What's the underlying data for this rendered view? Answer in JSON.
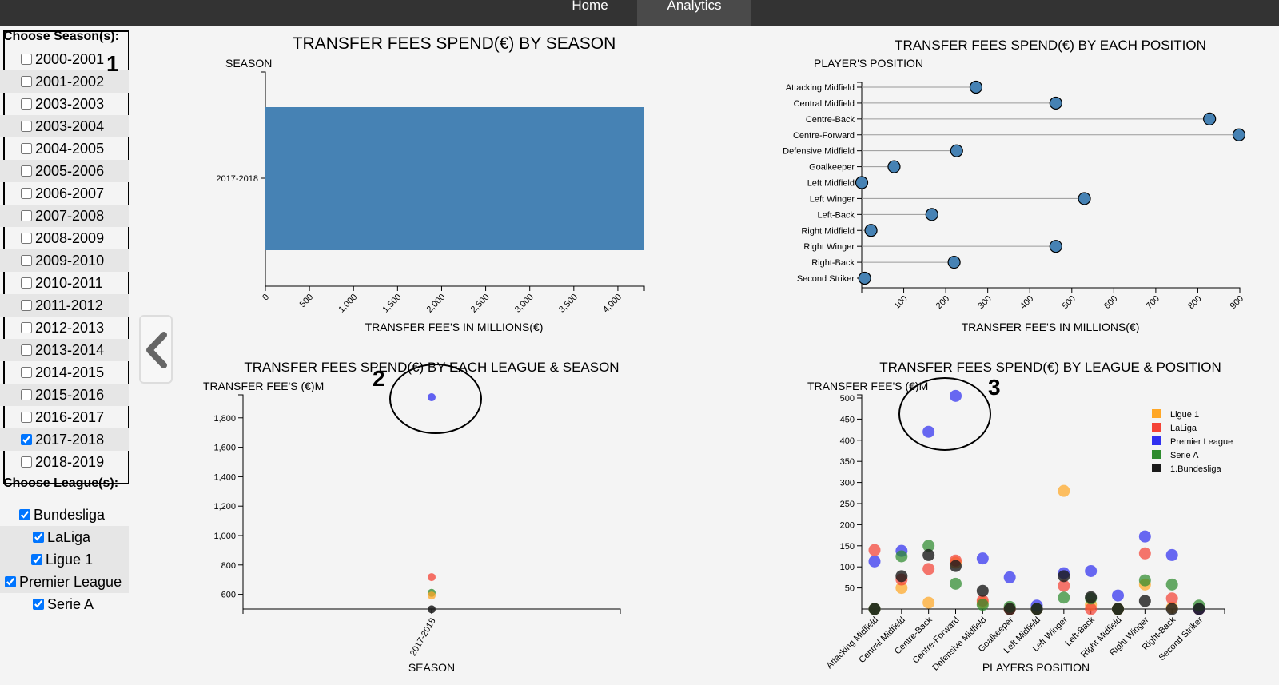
{
  "nav": {
    "home_label": "Home",
    "analytics_label": "Analytics"
  },
  "filters": {
    "season_title": "Choose Season(s):",
    "seasons": [
      {
        "label": "2000-2001",
        "checked": false
      },
      {
        "label": "2001-2002",
        "checked": false
      },
      {
        "label": "2003-2003",
        "checked": false
      },
      {
        "label": "2003-2004",
        "checked": false
      },
      {
        "label": "2004-2005",
        "checked": false
      },
      {
        "label": "2005-2006",
        "checked": false
      },
      {
        "label": "2006-2007",
        "checked": false
      },
      {
        "label": "2007-2008",
        "checked": false
      },
      {
        "label": "2008-2009",
        "checked": false
      },
      {
        "label": "2009-2010",
        "checked": false
      },
      {
        "label": "2010-2011",
        "checked": false
      },
      {
        "label": "2011-2012",
        "checked": false
      },
      {
        "label": "2012-2013",
        "checked": false
      },
      {
        "label": "2013-2014",
        "checked": false
      },
      {
        "label": "2014-2015",
        "checked": false
      },
      {
        "label": "2015-2016",
        "checked": false
      },
      {
        "label": "2016-2017",
        "checked": false
      },
      {
        "label": "2017-2018",
        "checked": true
      },
      {
        "label": "2018-2019",
        "checked": false
      }
    ],
    "league_title": "Choose League(s):",
    "leagues": [
      {
        "label": "Bundesliga",
        "checked": true
      },
      {
        "label": "LaLiga",
        "checked": true
      },
      {
        "label": "Ligue 1",
        "checked": true
      },
      {
        "label": "Premier League",
        "checked": true
      },
      {
        "label": "Serie A",
        "checked": true
      }
    ]
  },
  "collapse_icon": "chevron-left-icon",
  "annotations": [
    "1",
    "2",
    "3"
  ],
  "colors": {
    "bar": "#4682b4",
    "Ligue 1": "#ffa726",
    "LaLiga": "#f44336",
    "Premier League": "#3030f0",
    "Serie A": "#2e8b2e",
    "1.Bundesliga": "#1a1a1a"
  },
  "chart_data": [
    {
      "type": "bar",
      "orientation": "horizontal",
      "title": "TRANSFER FEES SPEND(€) BY SEASON",
      "ylabel": "SEASON",
      "xlabel": "TRANSFER FEE'S IN MILLIONS(€)",
      "categories": [
        "2017-2018"
      ],
      "values": [
        4300
      ],
      "xlim": [
        0,
        4300
      ],
      "xticks": [
        "0",
        "500",
        "1,000",
        "1,500",
        "2,000",
        "2,500",
        "3,000",
        "3,500",
        "4,000"
      ]
    },
    {
      "type": "lollipop",
      "title": "TRANSFER FEES SPEND(€) BY EACH POSITION",
      "ylabel": "PLAYER'S POSITION",
      "xlabel": "TRANSFER FEE'S IN MILLIONS(€)",
      "categories": [
        "Attacking Midfield",
        "Central Midfield",
        "Centre-Back",
        "Centre-Forward",
        "Defensive Midfield",
        "Goalkeeper",
        "Left Midfield",
        "Left Winger",
        "Left-Back",
        "Right Midfield",
        "Right Winger",
        "Right-Back",
        "Second Striker"
      ],
      "values": [
        272,
        462,
        828,
        898,
        226,
        77,
        0,
        530,
        167,
        22,
        462,
        220,
        7
      ],
      "xlim": [
        0,
        900
      ],
      "xticks": [
        "100",
        "200",
        "300",
        "400",
        "500",
        "600",
        "700",
        "800",
        "900"
      ]
    },
    {
      "type": "scatter",
      "title": "TRANSFER FEES SPEND(€) BY EACH LEAGUE & SEASON",
      "ylabel": "TRANSFER FEE'S (€)M",
      "xlabel": "SEASON",
      "categories": [
        "2017-2018"
      ],
      "ylim": [
        500,
        1950
      ],
      "yticks": [
        "600",
        "800",
        "1,000",
        "1,200",
        "1,400",
        "1,600",
        "1,800"
      ],
      "series": [
        {
          "name": "Premier League",
          "values": [
            1940
          ]
        },
        {
          "name": "LaLiga",
          "values": [
            717
          ]
        },
        {
          "name": "Serie A",
          "values": [
            610
          ]
        },
        {
          "name": "Ligue 1",
          "values": [
            592
          ]
        },
        {
          "name": "1.Bundesliga",
          "values": [
            498
          ]
        }
      ]
    },
    {
      "type": "scatter",
      "title": "TRANSFER FEES SPEND(€) BY LEAGUE & POSITION",
      "ylabel": "TRANSFER FEE'S (€)M",
      "xlabel": "PLAYERS POSITION",
      "categories": [
        "Attacking Midfield",
        "Central Midfield",
        "Centre-Back",
        "Centre-Forward",
        "Defensive Midfield",
        "Goalkeeper",
        "Left Midfield",
        "Left Winger",
        "Left-Back",
        "Right Midfield",
        "Right Winger",
        "Right-Back",
        "Second Striker"
      ],
      "ylim": [
        0,
        500
      ],
      "yticks": [
        "50",
        "100",
        "150",
        "200",
        "250",
        "300",
        "350",
        "400",
        "450",
        "500"
      ],
      "legend": [
        "Ligue 1",
        "LaLiga",
        "Premier League",
        "Serie A",
        "1.Bundesliga"
      ],
      "legend_position": "top-right",
      "series": [
        {
          "name": "Ligue 1",
          "values": [
            0,
            50,
            15,
            110,
            15,
            0,
            0,
            280,
            10,
            0,
            58,
            3,
            0
          ]
        },
        {
          "name": "LaLiga",
          "values": [
            140,
            70,
            95,
            115,
            20,
            0,
            0,
            55,
            0,
            0,
            132,
            25,
            0
          ]
        },
        {
          "name": "Premier League",
          "values": [
            113,
            138,
            420,
            505,
            120,
            75,
            8,
            85,
            90,
            32,
            172,
            128,
            0
          ]
        },
        {
          "name": "Serie A",
          "values": [
            0,
            125,
            150,
            60,
            10,
            5,
            0,
            27,
            25,
            0,
            68,
            58,
            8
          ]
        },
        {
          "name": "1.Bundesliga",
          "values": [
            0,
            78,
            128,
            102,
            43,
            0,
            0,
            78,
            28,
            0,
            19,
            0,
            0
          ]
        }
      ]
    }
  ]
}
